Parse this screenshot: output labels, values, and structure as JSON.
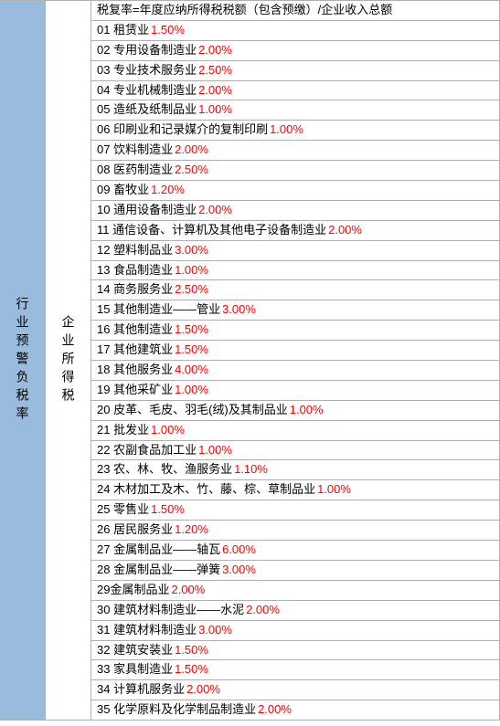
{
  "leftHeader": "行业预警负税率",
  "middleHeader": "企业所得税",
  "formulaRow": "税复率=年度应纳所得税税额（包含预缴）/企业收入总额",
  "colors": {
    "leftBg": "#99bbdd",
    "rateColor": "#ff0000",
    "textColor": "#000000",
    "borderColor": "#b0b0b0",
    "rowBg": "#ffffff"
  },
  "rows": [
    {
      "num": "01",
      "label": "租赁业",
      "rate": "1.50%"
    },
    {
      "num": "02",
      "label": "专用设备制造业",
      "rate": "2.00%"
    },
    {
      "num": "03",
      "label": "专业技术服务业",
      "rate": "2.50%"
    },
    {
      "num": "04",
      "label": "专业机械制造业",
      "rate": "2.00%"
    },
    {
      "num": "05",
      "label": "造纸及纸制品业",
      "rate": "1.00%"
    },
    {
      "num": "06",
      "label": "印刷业和记录媒介的复制印刷",
      "rate": "1.00%"
    },
    {
      "num": "07",
      "label": "饮料制造业",
      "rate": "2.00%"
    },
    {
      "num": "08",
      "label": "医药制造业",
      "rate": "2.50%"
    },
    {
      "num": "09",
      "label": "畜牧业",
      "rate": "1.20%"
    },
    {
      "num": "10",
      "label": "通用设备制造业",
      "rate": "2.00%"
    },
    {
      "num": "11",
      "label": "通信设备、计算机及其他电子设备制造业",
      "rate": "2.00%"
    },
    {
      "num": "12",
      "label": "塑料制品业",
      "rate": "3.00%"
    },
    {
      "num": "13",
      "label": "食品制造业",
      "rate": "1.00%"
    },
    {
      "num": "14",
      "label": "商务服务业",
      "rate": "2.50%"
    },
    {
      "num": "15",
      "label": "其他制造业——管业",
      "rate": "3.00%"
    },
    {
      "num": "16",
      "label": "其他制造业",
      "rate": "1.50%"
    },
    {
      "num": "17",
      "label": "其他建筑业",
      "rate": "1.50%"
    },
    {
      "num": "18",
      "label": "其他服务业",
      "rate": "4.00%"
    },
    {
      "num": "19",
      "label": "其他采矿业",
      "rate": "1.00%"
    },
    {
      "num": "20",
      "label": "皮革、毛皮、羽毛(绒)及其制品业",
      "rate": "1.00%"
    },
    {
      "num": "21",
      "label": "批发业",
      "rate": "1.00%"
    },
    {
      "num": "22",
      "label": "农副食品加工业",
      "rate": "1.00%"
    },
    {
      "num": "23",
      "label": "农、林、牧、渔服务业",
      "rate": "1.10%"
    },
    {
      "num": "24",
      "label": "木材加工及木、竹、藤、棕、草制品业",
      "rate": "1.00%"
    },
    {
      "num": "25",
      "label": "零售业",
      "rate": "1.50%"
    },
    {
      "num": "26",
      "label": "居民服务业",
      "rate": "1.20%"
    },
    {
      "num": "27",
      "label": "金属制品业——轴瓦",
      "rate": "6.00%"
    },
    {
      "num": "28",
      "label": "金属制品业——弹簧",
      "rate": "3.00%"
    },
    {
      "num": "29",
      "label": "金属制品业",
      "rate": "2.00%",
      "nospace": true
    },
    {
      "num": "30",
      "label": "建筑材料制造业——水泥",
      "rate": "2.00%"
    },
    {
      "num": "31",
      "label": "建筑材料制造业",
      "rate": "3.00%"
    },
    {
      "num": "32",
      "label": "建筑安装业",
      "rate": "1.50%"
    },
    {
      "num": "33",
      "label": "家具制造业",
      "rate": "1.50%"
    },
    {
      "num": "34",
      "label": "计算机服务业",
      "rate": "2.00%"
    },
    {
      "num": "35",
      "label": "化学原料及化学制品制造业",
      "rate": "2.00%"
    }
  ]
}
